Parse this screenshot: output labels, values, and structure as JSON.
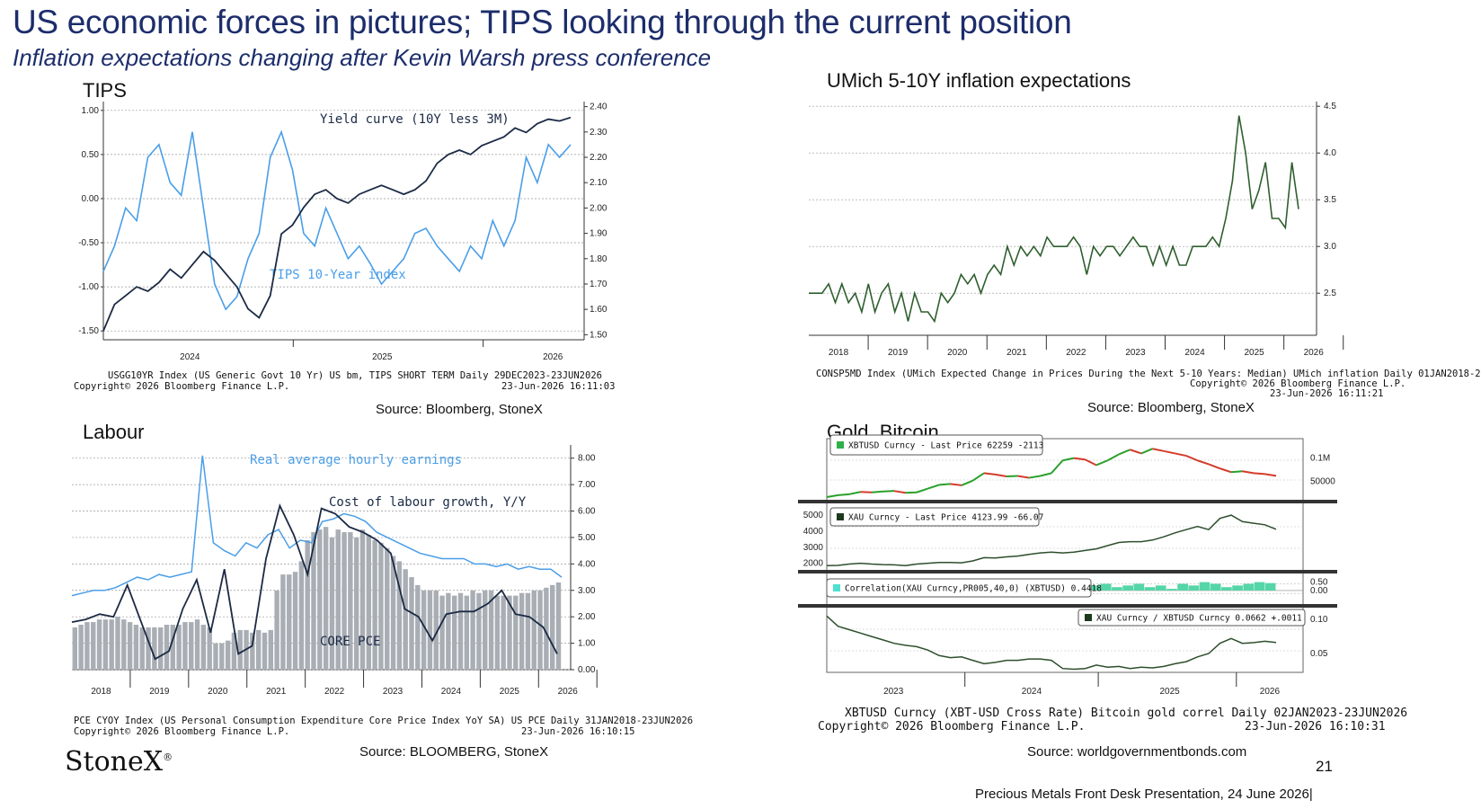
{
  "header": {
    "title": "US  economic forces in pictures; TIPS looking through the current position",
    "subtitle": "Inflation expectations changing after Kevin Warsh press conference"
  },
  "panels": {
    "tips": {
      "title": "TIPS",
      "footer_line1": "USGG10YR Index (US Generic Govt 10 Yr) US bm, TIPS SHORT TERM Daily 29DEC2023-23JUN2026",
      "footer_line2": "Copyright© 2026 Bloomberg Finance L.P.",
      "footer_time": "23-Jun-2026 16:11:03",
      "source": "Source: Bloomberg, StoneX"
    },
    "umich": {
      "title": "UMich 5-10Y inflation expectations",
      "footer_line1": "CONSP5MD Index (UMich Expected Change in Prices During the Next 5-10 Years: Median) UMich inflation Daily 01JAN2018-2",
      "footer_line2": "Copyright© 2026 Bloomberg Finance L.P.",
      "footer_time": "23-Jun-2026 16:11:21",
      "source": "Source: Bloomberg, StoneX"
    },
    "labour": {
      "title": "Labour",
      "footer_line1": "PCE CYOY Index (US Personal Consumption Expenditure Core Price Index YoY SA) US PCE Daily 31JAN2018-23JUN2026",
      "footer_line2": "Copyright© 2026 Bloomberg Finance L.P.",
      "footer_time": "23-Jun-2026 16:10:15",
      "source": "Source: BLOOMBERG, StoneX"
    },
    "gold": {
      "title": "Gold, Bitcoin",
      "footer_line1": "XBTUSD Curncy (XBT-USD Cross Rate) Bitcoin gold correl Daily 02JAN2023-23JUN2026",
      "footer_line2": "Copyright© 2026 Bloomberg Finance L.P.",
      "footer_time": "23-Jun-2026 16:10:31",
      "source": "Source: worldgovernmentbonds.com"
    }
  },
  "branding": {
    "logo": "StoneX",
    "logo_mark": "®"
  },
  "page_number": "21",
  "footer_text": "Precious Metals Front Desk Presentation, 24 June 2026|",
  "colors": {
    "title": "#1c2d6b",
    "navy_line": "#1b2a44",
    "light_blue": "#4a9ee8",
    "umich_green": "#2f5f2f",
    "bars": "#a9aeb5",
    "btc_red": "#d43b2b",
    "btc_green": "#2aa02a"
  },
  "chart_data": [
    {
      "type": "line",
      "id": "tips",
      "x_ticks": [
        "2024",
        "2025",
        "2026"
      ],
      "left_axis": {
        "ylim": [
          -1.6,
          1.1
        ],
        "ticks": [
          "1.00",
          "0.50",
          "0.00",
          "-0.50",
          "-1.00",
          "-1.50"
        ]
      },
      "right_axis": {
        "ylim": [
          1.48,
          2.42
        ],
        "ticks": [
          "2.40",
          "2.30",
          "2.20",
          "2.10",
          "2.00",
          "1.90",
          "1.80",
          "1.70",
          "1.60",
          "1.50"
        ]
      },
      "series": [
        {
          "name": "Yield curve (10Y less 3M)",
          "axis": "left",
          "color": "#1b2a44",
          "values": [
            -1.5,
            -1.2,
            -1.1,
            -1.0,
            -1.05,
            -0.95,
            -0.8,
            -0.9,
            -0.75,
            -0.6,
            -0.7,
            -0.85,
            -1.0,
            -1.25,
            -1.35,
            -1.1,
            -0.4,
            -0.3,
            -0.1,
            0.05,
            0.1,
            0.0,
            -0.05,
            0.05,
            0.1,
            0.15,
            0.1,
            0.05,
            0.1,
            0.2,
            0.4,
            0.5,
            0.55,
            0.5,
            0.6,
            0.65,
            0.7,
            0.8,
            0.75,
            0.85,
            0.9,
            0.88,
            0.92
          ]
        },
        {
          "name": "TIPS 10-Year index",
          "axis": "right",
          "color": "#4a9ee8",
          "values": [
            1.75,
            1.85,
            2.0,
            1.95,
            2.2,
            2.25,
            2.1,
            2.05,
            2.3,
            2.0,
            1.7,
            1.6,
            1.65,
            1.8,
            1.9,
            2.2,
            2.3,
            2.15,
            1.9,
            1.85,
            2.0,
            1.9,
            1.8,
            1.85,
            1.78,
            1.7,
            1.75,
            1.8,
            1.9,
            1.92,
            1.85,
            1.8,
            1.75,
            1.85,
            1.8,
            1.95,
            1.85,
            1.95,
            2.2,
            2.1,
            2.25,
            2.2,
            2.25
          ]
        }
      ]
    },
    {
      "type": "line",
      "id": "umich",
      "x_ticks": [
        "2018",
        "2019",
        "2020",
        "2021",
        "2022",
        "2023",
        "2024",
        "2025",
        "2026"
      ],
      "right_axis": {
        "ylim": [
          2.05,
          4.55
        ],
        "ticks": [
          "4.5",
          "4.0",
          "3.5",
          "3.0",
          "2.5"
        ]
      },
      "series": [
        {
          "name": "",
          "color": "#2f5f2f",
          "values": [
            2.5,
            2.5,
            2.5,
            2.6,
            2.4,
            2.6,
            2.4,
            2.5,
            2.3,
            2.6,
            2.3,
            2.5,
            2.6,
            2.3,
            2.5,
            2.2,
            2.5,
            2.3,
            2.3,
            2.2,
            2.5,
            2.4,
            2.5,
            2.7,
            2.6,
            2.7,
            2.5,
            2.7,
            2.8,
            2.7,
            3.0,
            2.8,
            3.0,
            2.9,
            3.0,
            2.9,
            3.1,
            3.0,
            3.0,
            3.0,
            3.1,
            3.0,
            2.7,
            3.0,
            2.9,
            3.0,
            3.0,
            2.9,
            3.0,
            3.1,
            3.0,
            3.0,
            2.8,
            3.0,
            2.8,
            3.0,
            2.8,
            2.8,
            3.0,
            3.0,
            3.0,
            3.1,
            3.0,
            3.3,
            3.7,
            4.4,
            4.0,
            3.4,
            3.6,
            3.9,
            3.3,
            3.3,
            3.2,
            3.9,
            3.4
          ]
        }
      ]
    },
    {
      "type": "bar",
      "id": "labour",
      "x_ticks": [
        "2018",
        "2019",
        "2020",
        "2021",
        "2022",
        "2023",
        "2024",
        "2025",
        "2026"
      ],
      "right_axis": {
        "ylim": [
          0,
          8.5
        ],
        "ticks": [
          "8.00",
          "7.00",
          "6.00",
          "5.00",
          "4.00",
          "3.00",
          "2.00",
          "1.00",
          "0.00"
        ]
      },
      "bar_series": {
        "name": "CORE PCE",
        "color": "#a9aeb5",
        "values": [
          1.6,
          1.7,
          1.8,
          1.8,
          1.9,
          1.9,
          1.9,
          2.0,
          1.9,
          1.8,
          1.7,
          1.6,
          1.6,
          1.6,
          1.6,
          1.7,
          1.7,
          1.7,
          1.8,
          1.8,
          1.9,
          1.7,
          1.6,
          1.0,
          1.0,
          1.1,
          1.4,
          1.5,
          1.5,
          1.4,
          1.5,
          1.4,
          1.5,
          3.0,
          3.6,
          3.6,
          3.7,
          4.1,
          4.9,
          5.2,
          5.3,
          5.4,
          5.0,
          5.3,
          5.2,
          5.2,
          5.0,
          5.3,
          5.1,
          4.9,
          4.8,
          4.6,
          4.3,
          4.1,
          3.8,
          3.5,
          3.2,
          3.0,
          3.0,
          3.0,
          2.8,
          2.9,
          2.8,
          2.9,
          2.8,
          3.0,
          2.9,
          3.0,
          3.0,
          2.8,
          2.8,
          2.8,
          2.8,
          2.9,
          2.9,
          3.0,
          3.0,
          3.1,
          3.2,
          3.3
        ]
      },
      "series": [
        {
          "name": "Real average hourly earnings",
          "color": "#4a9ee8",
          "values": [
            2.8,
            2.9,
            3.0,
            3.0,
            3.1,
            3.3,
            3.5,
            3.4,
            3.6,
            3.5,
            3.6,
            3.7,
            8.1,
            4.8,
            4.5,
            4.3,
            4.8,
            4.6,
            5.1,
            5.3,
            4.6,
            4.9,
            4.8,
            5.6,
            5.7,
            5.9,
            5.8,
            5.6,
            5.2,
            5.0,
            4.8,
            4.6,
            4.4,
            4.3,
            4.2,
            4.2,
            4.2,
            4.0,
            4.0,
            3.9,
            4.0,
            3.8,
            3.9,
            3.8,
            3.8,
            3.5
          ]
        },
        {
          "name": "Cost of labour growth, Y/Y",
          "color": "#1b2a44",
          "values": [
            1.8,
            1.9,
            2.1,
            2.0,
            3.2,
            1.8,
            0.4,
            0.7,
            2.3,
            3.4,
            1.4,
            3.8,
            0.6,
            0.9,
            4.2,
            6.2,
            5.1,
            3.6,
            6.1,
            5.9,
            5.4,
            5.2,
            4.9,
            4.4,
            2.3,
            2.0,
            1.1,
            2.1,
            2.2,
            2.2,
            2.5,
            3.0,
            2.1,
            2.0,
            1.6,
            0.6
          ]
        }
      ]
    },
    {
      "type": "line",
      "id": "gold_bitcoin",
      "x_ticks": [
        "2023",
        "2024",
        "2025",
        "2026"
      ],
      "subpanels": [
        {
          "legend": "XBTUSD Curncy  - Last Price 62259  -2113",
          "right_ticks": [
            "0.1M",
            "50000"
          ],
          "ylim": [
            15000,
            130000
          ],
          "values": [
            17000,
            21000,
            23000,
            28000,
            27000,
            29000,
            30000,
            26000,
            27000,
            35000,
            43000,
            45000,
            42000,
            52000,
            68000,
            65000,
            61000,
            62000,
            58000,
            62000,
            68000,
            95000,
            100000,
            97000,
            85000,
            95000,
            108000,
            118000,
            110000,
            120000,
            115000,
            110000,
            105000,
            95000,
            87000,
            78000,
            70000,
            72000,
            68000,
            66000,
            62259
          ]
        },
        {
          "legend": "XAU Curncy  - Last Price 4123.99  -66.07",
          "left_ticks": [
            "5000",
            "4000",
            "3000",
            "2000"
          ],
          "ylim": [
            1700,
            5400
          ],
          "values": [
            1850,
            1870,
            1950,
            2000,
            1950,
            1920,
            1900,
            1850,
            1950,
            2000,
            2050,
            2050,
            2030,
            2150,
            2350,
            2330,
            2400,
            2450,
            2550,
            2650,
            2700,
            2650,
            2700,
            2800,
            2900,
            3100,
            3300,
            3350,
            3350,
            3450,
            3650,
            3900,
            4100,
            4300,
            4100,
            4800,
            5000,
            4600,
            4500,
            4400,
            4124
          ]
        },
        {
          "legend": "Correlation(XAU Curncy,PR005,40,0) (XBTUSD) 0.4418",
          "right_ticks": [
            "0.50",
            "0.00"
          ],
          "ylim": [
            -0.7,
            0.8
          ],
          "values": [
            0.3,
            0.5,
            0.2,
            0.4,
            0.1,
            0.3,
            0.45,
            0.2,
            0.1,
            0.3,
            0.5,
            0.4,
            0.2,
            0.3,
            0.4,
            0.5,
            0.2,
            0.3,
            -0.2,
            -0.4,
            0.1,
            0.3,
            0.2,
            0.5,
            0.3,
            0.4,
            0.2,
            0.3,
            0.4,
            0.2,
            0.3,
            0.1,
            0.4,
            0.3,
            0.5,
            0.4,
            0.2,
            0.3,
            0.4,
            0.5,
            0.4418
          ]
        },
        {
          "legend": "XAU Curncy / XBTUSD Curncy 0.0662  +.0011",
          "right_ticks": [
            "0.10",
            "0.05"
          ],
          "ylim": [
            0.025,
            0.112
          ],
          "values": [
            0.105,
            0.09,
            0.085,
            0.08,
            0.075,
            0.07,
            0.065,
            0.062,
            0.06,
            0.055,
            0.047,
            0.044,
            0.045,
            0.04,
            0.035,
            0.037,
            0.04,
            0.04,
            0.042,
            0.042,
            0.04,
            0.028,
            0.027,
            0.028,
            0.033,
            0.03,
            0.031,
            0.028,
            0.03,
            0.029,
            0.031,
            0.035,
            0.038,
            0.045,
            0.05,
            0.065,
            0.072,
            0.065,
            0.066,
            0.068,
            0.0662
          ]
        }
      ]
    }
  ]
}
